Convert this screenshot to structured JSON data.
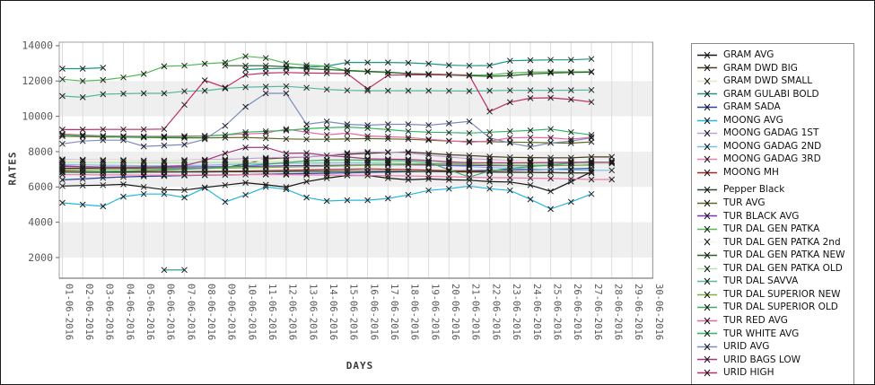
{
  "window": {
    "background": "#ffffff",
    "border_color": "#1a1a1a"
  },
  "axes": {
    "x_title": "DAYS",
    "y_title": "RATES",
    "tick_color": "#5a5a5a",
    "gridline_color": "#dcdcdc",
    "band_color": "#efefef",
    "frame_color": "#a0a0a0",
    "marker_color": "#1c1c1c"
  },
  "legend": {
    "position": "right",
    "gap_after": "MOONG MH"
  },
  "chart_data": {
    "type": "line",
    "title": "",
    "xlabel": "DAYS",
    "ylabel": "RATES",
    "marker": "x",
    "grid": "vertical",
    "legend_position": "right",
    "ylim": [
      830,
      14200
    ],
    "yticks": [
      2000,
      4000,
      6000,
      8000,
      10000,
      12000,
      14000
    ],
    "shaded_bands": [
      [
        10000,
        12000
      ],
      [
        6000,
        8000
      ],
      [
        2000,
        4000
      ]
    ],
    "categories": [
      "01-06-2016",
      "02-06-2016",
      "03-06-2016",
      "04-06-2016",
      "05-06-2016",
      "06-06-2016",
      "07-06-2016",
      "08-06-2016",
      "09-06-2016",
      "10-06-2016",
      "11-06-2016",
      "12-06-2016",
      "13-06-2016",
      "14-06-2016",
      "15-06-2016",
      "16-06-2016",
      "17-06-2016",
      "18-06-2016",
      "19-06-2016",
      "20-06-2016",
      "21-06-2016",
      "22-06-2016",
      "23-06-2016",
      "24-06-2016",
      "25-06-2016",
      "26-06-2016",
      "27-06-2016",
      "28-06-2016",
      "29-06-2016",
      "30-06-2016"
    ],
    "series": [
      {
        "name": "GRAM AVG",
        "color": "#151515",
        "values": [
          6050,
          6080,
          6100,
          6150,
          6000,
          5850,
          5820,
          5970,
          6100,
          6240,
          6120,
          5990,
          6300,
          6500,
          6650,
          6650,
          6500,
          6400,
          6450,
          6400,
          6380,
          6300,
          6280,
          6100,
          5750,
          6300,
          6850,
          null,
          null,
          null
        ]
      },
      {
        "name": "GRAM DWD BIG",
        "color": "#4a3b20",
        "values": [
          7050,
          7060,
          7080,
          7080,
          7060,
          7050,
          7040,
          7040,
          7100,
          7300,
          7590,
          7650,
          7700,
          7780,
          7850,
          7900,
          7950,
          7980,
          7900,
          7820,
          7780,
          7720,
          7680,
          7660,
          7650,
          7650,
          7700,
          7700,
          null,
          null
        ]
      },
      {
        "name": "GRAM DWD SMALL",
        "color": "#e8e6c6",
        "values": [
          7480,
          7480,
          7470,
          7470,
          7460,
          7460,
          7460,
          7470,
          7470,
          7480,
          7480,
          7490,
          7490,
          7500,
          7500,
          7500,
          7490,
          7480,
          7470,
          7460,
          7450,
          7450,
          7440,
          7440,
          7430,
          7430,
          7430,
          7430,
          null,
          null
        ]
      },
      {
        "name": "GRAM GULABI BOLD",
        "color": "#19997f",
        "values": [
          12700,
          12700,
          12750,
          null,
          null,
          1300,
          1300,
          null,
          null,
          12650,
          12700,
          12720,
          12780,
          12850,
          13050,
          13050,
          13050,
          13030,
          12980,
          12900,
          12870,
          12880,
          13150,
          13180,
          13200,
          13200,
          13250,
          null,
          null,
          null
        ]
      },
      {
        "name": "GRAM SADA",
        "color": "#2c3f9e",
        "values": [
          6400,
          6450,
          6520,
          6570,
          6600,
          6620,
          6640,
          6660,
          6680,
          6700,
          6720,
          6740,
          6760,
          6780,
          6800,
          6820,
          6840,
          6860,
          6880,
          6900,
          6920,
          6940,
          6960,
          6980,
          7000,
          7020,
          7050,
          null,
          null,
          null
        ]
      },
      {
        "name": "MOONG AVG",
        "color": "#25b6dc",
        "values": [
          5100,
          5000,
          4900,
          5450,
          5600,
          5600,
          5400,
          5950,
          5150,
          5550,
          6000,
          5870,
          5400,
          5200,
          5250,
          5250,
          5350,
          5550,
          5800,
          5900,
          6050,
          5900,
          5800,
          5300,
          4750,
          5150,
          5600,
          null,
          null,
          null
        ]
      },
      {
        "name": "MOONG GADAG 1ST",
        "color": "#c49fd6",
        "values": [
          7560,
          7540,
          7520,
          7520,
          7500,
          7500,
          7520,
          7540,
          7560,
          7600,
          7650,
          7680,
          7700,
          7780,
          7920,
          7980,
          7980,
          7920,
          7800,
          7700,
          7600,
          7550,
          7500,
          7480,
          7450,
          7430,
          7400,
          7400,
          null,
          null
        ]
      },
      {
        "name": "MOONG GADAG 2ND",
        "color": "#79bfe9",
        "values": [
          7270,
          7250,
          7230,
          7220,
          7200,
          7200,
          7210,
          7230,
          7260,
          7300,
          7320,
          7330,
          7340,
          7350,
          7350,
          7340,
          7320,
          7290,
          7250,
          7200,
          7150,
          7100,
          7060,
          7020,
          6990,
          6960,
          6940,
          6940,
          null,
          null
        ]
      },
      {
        "name": "MOONG GADAG 3RD",
        "color": "#f07cb0",
        "values": [
          6700,
          6690,
          6680,
          6680,
          6670,
          6670,
          6670,
          6680,
          6690,
          6700,
          6700,
          6690,
          6680,
          6670,
          6660,
          6650,
          6640,
          6620,
          6600,
          6580,
          6550,
          6530,
          6520,
          6500,
          6480,
          6450,
          6420,
          6420,
          null,
          null
        ]
      },
      {
        "name": "MOONG MH",
        "color": "#a82424",
        "values": [
          6900,
          6890,
          6880,
          6880,
          6870,
          6870,
          6870,
          6880,
          6890,
          6900,
          6920,
          6940,
          6960,
          6980,
          7000,
          7020,
          7000,
          6980,
          6950,
          6920,
          6900,
          6870,
          6850,
          6830,
          6810,
          6800,
          6800,
          null,
          null,
          null
        ]
      },
      {
        "name": "Pepper Black",
        "color": "#2d4a2d",
        "values": [
          6820,
          6820,
          6830,
          6830,
          6840,
          6840,
          6850,
          6850,
          6860,
          6860,
          6870,
          6870,
          6880,
          6880,
          6890,
          6890,
          6890,
          6880,
          6870,
          6860,
          6850,
          6840,
          6830,
          6820,
          6810,
          6800,
          6790,
          null,
          null,
          null
        ]
      },
      {
        "name": "TUR AVG",
        "color": "#5d6b1f",
        "values": [
          8870,
          8850,
          8830,
          8820,
          8800,
          8790,
          8780,
          8780,
          8790,
          8800,
          8760,
          8720,
          8700,
          8700,
          8720,
          8740,
          8720,
          8700,
          8650,
          8600,
          8580,
          8560,
          8540,
          8520,
          8500,
          8480,
          8550,
          null,
          null,
          null
        ]
      },
      {
        "name": "TUR BLACK AVG",
        "color": "#7a33c4",
        "values": [
          7150,
          7140,
          7130,
          7130,
          7120,
          7120,
          7130,
          7140,
          7150,
          7160,
          7180,
          7200,
          7210,
          7220,
          7230,
          7240,
          7250,
          7250,
          7240,
          7230,
          7220,
          7210,
          7200,
          7200,
          7210,
          7220,
          7250,
          null,
          null,
          null
        ]
      },
      {
        "name": "TUR DAL GEN PATKA",
        "color": "#54bb54",
        "values": [
          12100,
          12000,
          12060,
          12200,
          12400,
          12830,
          12870,
          12980,
          13050,
          13400,
          13300,
          13000,
          12900,
          12850,
          12580,
          12520,
          12480,
          12420,
          12400,
          12380,
          12340,
          12340,
          12450,
          12500,
          12520,
          12520,
          12530,
          null,
          null,
          null
        ]
      },
      {
        "name": "TUR DAL GEN PATKA 2nd",
        "color": "#f3f3ec",
        "values": [
          7520,
          7520,
          7510,
          7510,
          7500,
          7500,
          7500,
          7510,
          7510,
          7520,
          7520,
          7530,
          7530,
          7540,
          7540,
          7540,
          7530,
          7520,
          7510,
          7500,
          7490,
          7490,
          7480,
          7480,
          7470,
          7470,
          7470,
          7470,
          null,
          null
        ]
      },
      {
        "name": "TUR DAL GEN PATKA NEW",
        "color": "#276327",
        "values": [
          null,
          null,
          null,
          null,
          null,
          null,
          null,
          null,
          12870,
          12870,
          12870,
          12800,
          12700,
          12650,
          12600,
          12550,
          12500,
          12420,
          12380,
          12340,
          12300,
          12270,
          12300,
          12400,
          12450,
          12480,
          12500,
          null,
          null,
          null
        ]
      },
      {
        "name": "TUR DAL GEN PATKA OLD",
        "color": "#b7e3b2",
        "values": [
          7380,
          7380,
          7370,
          7370,
          7360,
          7360,
          7360,
          7370,
          7370,
          7380,
          7380,
          7390,
          7390,
          7400,
          7400,
          7400,
          7390,
          7380,
          7370,
          7360,
          7350,
          7350,
          7340,
          7340,
          7330,
          7330,
          7330,
          7330,
          null,
          null
        ]
      },
      {
        "name": "TUR DAL SAVVA",
        "color": "#55b8a0",
        "values": [
          11150,
          11080,
          11250,
          11280,
          11300,
          11300,
          11420,
          11450,
          11580,
          11650,
          11680,
          11700,
          11620,
          11520,
          11470,
          11450,
          11450,
          11450,
          11450,
          11440,
          11430,
          11450,
          11470,
          11470,
          11470,
          11480,
          11490,
          null,
          null,
          null
        ]
      },
      {
        "name": "TUR DAL SUPERIOR NEW",
        "color": "#79b43c",
        "values": [
          6980,
          6990,
          7000,
          7010,
          7020,
          7030,
          7040,
          7050,
          7070,
          7090,
          7110,
          7130,
          7150,
          7170,
          7200,
          7230,
          7260,
          7290,
          7310,
          7320,
          7280,
          7250,
          7230,
          7230,
          7230,
          7230,
          7230,
          null,
          null,
          null
        ]
      },
      {
        "name": "TUR DAL SUPERIOR OLD",
        "color": "#3aa968",
        "values": [
          6830,
          6850,
          6880,
          6900,
          6930,
          6960,
          7000,
          7060,
          7120,
          7200,
          7280,
          7380,
          7480,
          7530,
          7530,
          7520,
          7500,
          7480,
          7400,
          6970,
          6560,
          6900,
          7050,
          7150,
          7250,
          7350,
          7450,
          null,
          null,
          null
        ]
      },
      {
        "name": "TUR RED AVG",
        "color": "#ec619e",
        "values": [
          9000,
          8950,
          8900,
          8880,
          8870,
          8870,
          8880,
          8900,
          8950,
          9000,
          9050,
          9280,
          9100,
          8950,
          9050,
          8880,
          8840,
          8800,
          8700,
          8620,
          8530,
          8600,
          8780,
          8800,
          8780,
          8700,
          8820,
          null,
          null,
          null
        ]
      },
      {
        "name": "TUR WHITE AVG",
        "color": "#2db863",
        "values": [
          8950,
          8900,
          8870,
          8850,
          8840,
          8840,
          8850,
          8870,
          8950,
          9100,
          9150,
          9200,
          9300,
          9350,
          9390,
          9330,
          9250,
          9150,
          9100,
          9080,
          9050,
          9100,
          9150,
          9200,
          9280,
          9100,
          8950,
          null,
          null,
          null
        ]
      },
      {
        "name": "URID AVG",
        "color": "#7e8bc0",
        "values": [
          8440,
          8600,
          8650,
          8650,
          8300,
          8350,
          8400,
          8700,
          9460,
          10540,
          11300,
          11300,
          9550,
          9700,
          9550,
          9500,
          9550,
          9550,
          9500,
          9600,
          9710,
          8780,
          8490,
          8270,
          8490,
          8600,
          8780,
          null,
          null,
          null
        ]
      },
      {
        "name": "URID BAGS LOW",
        "color": "#a23581",
        "values": [
          7200,
          7150,
          7120,
          7120,
          7130,
          7150,
          7200,
          7500,
          7900,
          8230,
          8240,
          7900,
          7920,
          7780,
          7700,
          7590,
          7570,
          7560,
          7500,
          7420,
          7370,
          7360,
          7360,
          7370,
          7380,
          7390,
          7400,
          7400,
          null,
          null
        ]
      },
      {
        "name": "URID HIGH",
        "color": "#bf2f66",
        "values": [
          9250,
          9250,
          9260,
          9260,
          9260,
          9280,
          10650,
          12040,
          11630,
          12350,
          12450,
          12480,
          12450,
          12440,
          12420,
          11550,
          12330,
          12350,
          12350,
          12340,
          12330,
          10270,
          10800,
          11030,
          11050,
          10950,
          10810,
          null,
          null,
          null
        ]
      }
    ]
  }
}
